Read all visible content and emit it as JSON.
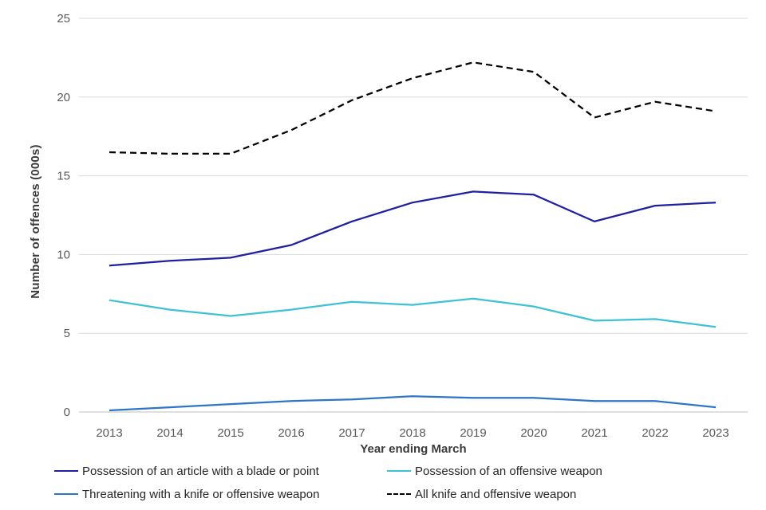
{
  "figure": {
    "y_axis_title": "Number of offences (000s)",
    "x_axis_title": "Year ending March"
  },
  "chart_data": {
    "type": "line",
    "title": "",
    "xlabel": "Year ending March",
    "ylabel": "Number of offences (000s)",
    "x_tick_labels": [
      "2013",
      "2014",
      "2015",
      "2016",
      "2017",
      "2018",
      "2019",
      "2020",
      "2021",
      "2022",
      "2023"
    ],
    "yticks": [
      0,
      5,
      10,
      15,
      20,
      25
    ],
    "ylim": [
      0,
      25
    ],
    "grid": "horizontal gridlines on",
    "gridline_color": "#d9d9d9",
    "baseline_color": "#bfbfbf",
    "tick_label_color": "#595959",
    "legend_position": "bottom, two rows",
    "series": [
      {
        "name": "Possession of an article with a blade or point",
        "color": "#1f1fa0",
        "style": "solid",
        "values": [
          9.3,
          9.6,
          9.8,
          10.6,
          12.1,
          13.3,
          14.0,
          13.8,
          12.1,
          13.1,
          13.3
        ]
      },
      {
        "name": "Possession of an offensive weapon",
        "color": "#3fc1d5",
        "style": "solid",
        "values": [
          7.1,
          6.5,
          6.1,
          6.5,
          7.0,
          6.8,
          7.2,
          6.7,
          5.8,
          5.9,
          5.4
        ]
      },
      {
        "name": "Threatening with a knife or offensive weapon",
        "color": "#2e75c8",
        "style": "solid",
        "values": [
          0.1,
          0.3,
          0.5,
          0.7,
          0.8,
          1.0,
          0.9,
          0.9,
          0.7,
          0.7,
          0.3
        ]
      },
      {
        "name": "All knife and offensive weapon",
        "color": "#000000",
        "style": "dashed",
        "values": [
          16.5,
          16.4,
          16.4,
          17.9,
          19.8,
          21.2,
          22.2,
          21.6,
          18.7,
          19.7,
          19.1
        ]
      }
    ]
  }
}
